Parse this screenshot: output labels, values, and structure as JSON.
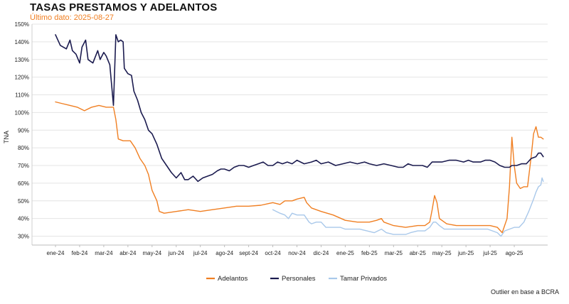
{
  "header": {
    "title": "TASAS PRESTAMOS Y ADELANTOS",
    "subtitle": "Último dato: 2025-08-27"
  },
  "footer": {
    "source": "Outlier en base a BCRA"
  },
  "colors": {
    "adelantos": "#f07f22",
    "personales": "#1b1b4f",
    "tamar": "#a9c8ea",
    "grid": "#e4e4e4"
  },
  "chart_data": {
    "type": "line",
    "title": "TASAS PRESTAMOS Y ADELANTOS",
    "ylabel": "TNA",
    "xlabel": "",
    "ylim": [
      25,
      150
    ],
    "xlim": [
      0,
      20
    ],
    "grid": true,
    "legend": "bottom-center",
    "y_ticks": [
      "30%",
      "40%",
      "50%",
      "60%",
      "70%",
      "80%",
      "90%",
      "100%",
      "110%",
      "120%",
      "130%",
      "140%",
      "150%"
    ],
    "x_ticks": [
      {
        "label": "ene-24",
        "x": 0
      },
      {
        "label": "feb-24",
        "x": 1
      },
      {
        "label": "mar-24",
        "x": 2
      },
      {
        "label": "abr-24",
        "x": 3
      },
      {
        "label": "may-24",
        "x": 4
      },
      {
        "label": "jun-24",
        "x": 5
      },
      {
        "label": "jul-24",
        "x": 6
      },
      {
        "label": "ago-24",
        "x": 7
      },
      {
        "label": "sept-24",
        "x": 8
      },
      {
        "label": "oct-24",
        "x": 9
      },
      {
        "label": "nov-24",
        "x": 10
      },
      {
        "label": "dic-24",
        "x": 11
      },
      {
        "label": "ene-25",
        "x": 12
      },
      {
        "label": "feb-25",
        "x": 13
      },
      {
        "label": "mar-25",
        "x": 14
      },
      {
        "label": "abr-25",
        "x": 15
      },
      {
        "label": "may-25",
        "x": 16
      },
      {
        "label": "jun-25",
        "x": 17
      },
      {
        "label": "jul-25",
        "x": 18
      },
      {
        "label": "ago-25",
        "x": 19
      }
    ],
    "series": [
      {
        "name": "Adelantos",
        "key": "adelantos",
        "points": [
          [
            0,
            106
          ],
          [
            0.3,
            105
          ],
          [
            0.6,
            104
          ],
          [
            0.9,
            103
          ],
          [
            1.2,
            101
          ],
          [
            1.5,
            103
          ],
          [
            1.8,
            104
          ],
          [
            2.1,
            103
          ],
          [
            2.4,
            103
          ],
          [
            2.5,
            96
          ],
          [
            2.6,
            85
          ],
          [
            2.8,
            84
          ],
          [
            3.1,
            84
          ],
          [
            3.3,
            80
          ],
          [
            3.5,
            74
          ],
          [
            3.7,
            70
          ],
          [
            3.85,
            65
          ],
          [
            4,
            56
          ],
          [
            4.2,
            50
          ],
          [
            4.3,
            44
          ],
          [
            4.5,
            43
          ],
          [
            5,
            44
          ],
          [
            5.5,
            45
          ],
          [
            6,
            44
          ],
          [
            6.5,
            45
          ],
          [
            7,
            46
          ],
          [
            7.5,
            47
          ],
          [
            8,
            47
          ],
          [
            8.5,
            47.5
          ],
          [
            9,
            49
          ],
          [
            9.3,
            48
          ],
          [
            9.5,
            50
          ],
          [
            9.8,
            50
          ],
          [
            10,
            51
          ],
          [
            10.3,
            52
          ],
          [
            10.4,
            49
          ],
          [
            10.6,
            46
          ],
          [
            11,
            44
          ],
          [
            11.5,
            42
          ],
          [
            12,
            39
          ],
          [
            12.5,
            38
          ],
          [
            13,
            38
          ],
          [
            13.3,
            39
          ],
          [
            13.5,
            40
          ],
          [
            13.6,
            38
          ],
          [
            14,
            36
          ],
          [
            14.5,
            35
          ],
          [
            15,
            36
          ],
          [
            15.3,
            36
          ],
          [
            15.5,
            38
          ],
          [
            15.6,
            45
          ],
          [
            15.7,
            53
          ],
          [
            15.8,
            49
          ],
          [
            15.9,
            40
          ],
          [
            16.2,
            37
          ],
          [
            16.6,
            36
          ],
          [
            17,
            36
          ],
          [
            17.5,
            36
          ],
          [
            18,
            36
          ],
          [
            18.3,
            35
          ],
          [
            18.5,
            32
          ],
          [
            18.7,
            40
          ],
          [
            18.8,
            58
          ],
          [
            18.9,
            86
          ],
          [
            19,
            70
          ],
          [
            19.1,
            60
          ],
          [
            19.25,
            57
          ],
          [
            19.4,
            58
          ],
          [
            19.55,
            58
          ],
          [
            19.7,
            75
          ],
          [
            19.8,
            88
          ],
          [
            19.9,
            92
          ],
          [
            20,
            86
          ],
          [
            20.1,
            86
          ],
          [
            20.2,
            85
          ]
        ]
      },
      {
        "name": "Personales",
        "key": "personales",
        "points": [
          [
            0,
            144
          ],
          [
            0.2,
            138
          ],
          [
            0.45,
            136
          ],
          [
            0.6,
            141
          ],
          [
            0.7,
            135
          ],
          [
            0.85,
            133
          ],
          [
            1.0,
            128
          ],
          [
            1.1,
            137
          ],
          [
            1.25,
            141
          ],
          [
            1.35,
            130
          ],
          [
            1.55,
            128
          ],
          [
            1.75,
            135
          ],
          [
            1.85,
            130
          ],
          [
            2.0,
            134
          ],
          [
            2.1,
            132
          ],
          [
            2.25,
            127
          ],
          [
            2.4,
            104
          ],
          [
            2.5,
            144
          ],
          [
            2.6,
            140
          ],
          [
            2.7,
            141
          ],
          [
            2.8,
            140
          ],
          [
            2.85,
            125
          ],
          [
            3.0,
            122
          ],
          [
            3.15,
            121
          ],
          [
            3.25,
            112
          ],
          [
            3.4,
            107
          ],
          [
            3.55,
            100
          ],
          [
            3.7,
            96
          ],
          [
            3.85,
            90
          ],
          [
            4.0,
            88
          ],
          [
            4.2,
            82
          ],
          [
            4.4,
            74
          ],
          [
            4.6,
            70
          ],
          [
            4.8,
            66
          ],
          [
            5.0,
            63
          ],
          [
            5.2,
            66
          ],
          [
            5.35,
            62
          ],
          [
            5.5,
            62
          ],
          [
            5.7,
            64
          ],
          [
            5.9,
            61
          ],
          [
            6.1,
            63
          ],
          [
            6.3,
            64
          ],
          [
            6.5,
            65
          ],
          [
            6.7,
            67
          ],
          [
            6.85,
            68
          ],
          [
            7.0,
            68
          ],
          [
            7.2,
            67
          ],
          [
            7.4,
            69
          ],
          [
            7.6,
            70
          ],
          [
            7.8,
            70
          ],
          [
            8.0,
            69
          ],
          [
            8.2,
            70
          ],
          [
            8.4,
            71
          ],
          [
            8.6,
            72
          ],
          [
            8.8,
            70
          ],
          [
            9.0,
            70
          ],
          [
            9.2,
            72
          ],
          [
            9.4,
            71
          ],
          [
            9.6,
            72
          ],
          [
            9.8,
            71
          ],
          [
            10.0,
            73
          ],
          [
            10.3,
            71
          ],
          [
            10.6,
            72
          ],
          [
            10.8,
            73
          ],
          [
            11.0,
            71
          ],
          [
            11.3,
            72
          ],
          [
            11.6,
            70
          ],
          [
            11.9,
            71
          ],
          [
            12.2,
            72
          ],
          [
            12.5,
            71
          ],
          [
            12.8,
            72
          ],
          [
            13.0,
            71
          ],
          [
            13.3,
            70
          ],
          [
            13.6,
            71
          ],
          [
            13.9,
            70
          ],
          [
            14.2,
            69
          ],
          [
            14.4,
            69
          ],
          [
            14.6,
            71
          ],
          [
            14.8,
            70
          ],
          [
            15.0,
            70
          ],
          [
            15.2,
            70
          ],
          [
            15.4,
            69
          ],
          [
            15.6,
            72
          ],
          [
            15.8,
            72
          ],
          [
            16.0,
            72
          ],
          [
            16.3,
            73
          ],
          [
            16.6,
            73
          ],
          [
            16.9,
            72
          ],
          [
            17.1,
            73
          ],
          [
            17.3,
            72
          ],
          [
            17.6,
            72
          ],
          [
            17.8,
            73
          ],
          [
            18.0,
            73
          ],
          [
            18.2,
            72
          ],
          [
            18.4,
            70
          ],
          [
            18.6,
            69
          ],
          [
            18.8,
            69
          ],
          [
            18.9,
            70
          ],
          [
            19.1,
            70
          ],
          [
            19.3,
            71
          ],
          [
            19.5,
            71
          ],
          [
            19.7,
            74
          ],
          [
            19.9,
            75
          ],
          [
            20.0,
            77
          ],
          [
            20.1,
            77
          ],
          [
            20.2,
            75
          ]
        ]
      },
      {
        "name": "Tamar Privados",
        "key": "tamar",
        "points": [
          [
            9.0,
            45
          ],
          [
            9.15,
            44
          ],
          [
            9.3,
            43
          ],
          [
            9.5,
            42
          ],
          [
            9.65,
            40
          ],
          [
            9.8,
            43
          ],
          [
            10.0,
            42
          ],
          [
            10.3,
            42
          ],
          [
            10.5,
            38
          ],
          [
            10.6,
            37
          ],
          [
            10.8,
            38
          ],
          [
            11.0,
            38
          ],
          [
            11.2,
            35
          ],
          [
            11.5,
            35
          ],
          [
            11.8,
            35
          ],
          [
            12.0,
            34
          ],
          [
            12.3,
            34
          ],
          [
            12.6,
            34
          ],
          [
            12.9,
            33
          ],
          [
            13.2,
            32
          ],
          [
            13.5,
            34
          ],
          [
            13.7,
            32
          ],
          [
            14.0,
            31
          ],
          [
            14.3,
            31
          ],
          [
            14.5,
            31
          ],
          [
            14.7,
            32
          ],
          [
            15.0,
            33
          ],
          [
            15.3,
            33
          ],
          [
            15.5,
            35
          ],
          [
            15.65,
            38
          ],
          [
            15.75,
            38
          ],
          [
            15.9,
            36
          ],
          [
            16.1,
            34
          ],
          [
            16.4,
            34
          ],
          [
            16.7,
            34
          ],
          [
            17.0,
            34
          ],
          [
            17.3,
            34
          ],
          [
            17.6,
            34
          ],
          [
            17.9,
            34
          ],
          [
            18.1,
            33
          ],
          [
            18.3,
            32
          ],
          [
            18.45,
            30
          ],
          [
            18.6,
            33
          ],
          [
            18.8,
            34
          ],
          [
            19.0,
            35
          ],
          [
            19.2,
            35
          ],
          [
            19.4,
            38
          ],
          [
            19.6,
            44
          ],
          [
            19.8,
            51
          ],
          [
            19.9,
            55
          ],
          [
            20.0,
            58
          ],
          [
            20.1,
            59
          ],
          [
            20.15,
            63
          ],
          [
            20.2,
            61
          ]
        ]
      }
    ]
  }
}
